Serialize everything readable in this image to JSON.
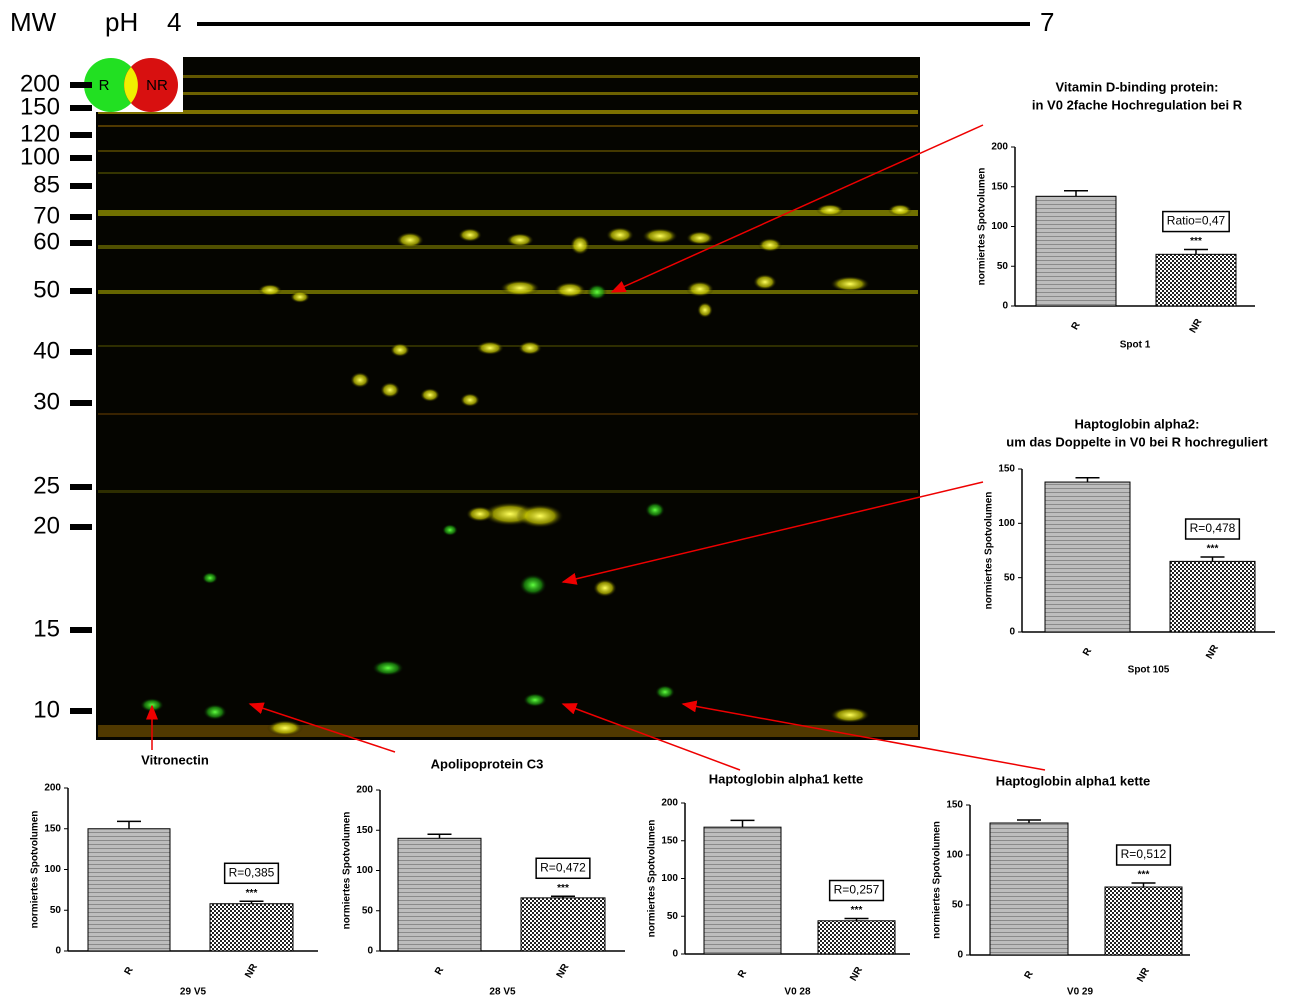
{
  "gel": {
    "mw_title": "MW",
    "ph_title": "pH",
    "ph_start": "4",
    "ph_end": "7",
    "mw_markers": [
      200,
      150,
      120,
      100,
      85,
      70,
      60,
      50,
      40,
      30,
      25,
      20,
      15,
      10
    ],
    "legend": [
      "R",
      "NR"
    ]
  },
  "chart_data": [
    {
      "type": "bar",
      "title": "Vitamin D-binding protein:",
      "subtitle": "in  V0 2fache Hochregulation bei R",
      "categories": [
        "R",
        "NR"
      ],
      "values": [
        138,
        65
      ],
      "errors": [
        7,
        6
      ],
      "ylabel": "normiertes  Spotvolumen",
      "xlabel": "Spot 1",
      "annotation": "Ratio=0,47",
      "significance": "***",
      "ylim": [
        0,
        200
      ],
      "yticks": [
        0,
        50,
        100,
        150,
        200
      ]
    },
    {
      "type": "bar",
      "title": "Haptoglobin alpha2:",
      "subtitle": "um das Doppelte in  V0 bei R hochreguliert",
      "categories": [
        "R",
        "NR"
      ],
      "values": [
        138,
        65
      ],
      "errors": [
        4,
        4
      ],
      "ylabel": "normiertes  Spotvolumen",
      "xlabel": "Spot 105",
      "annotation": "R=0,478",
      "significance": "***",
      "ylim": [
        0,
        150
      ],
      "yticks": [
        0,
        50,
        100,
        150
      ]
    },
    {
      "type": "bar",
      "title": "Vitronectin",
      "categories": [
        "R",
        "NR"
      ],
      "values": [
        150,
        58
      ],
      "errors": [
        9,
        3
      ],
      "ylabel": "normiertes  Spotvolumen",
      "xlabel": "29 V5",
      "annotation": "R=0,385",
      "significance": "***",
      "ylim": [
        0,
        200
      ],
      "yticks": [
        0,
        50,
        100,
        150,
        200
      ]
    },
    {
      "type": "bar",
      "title": "Apolipoprotein C3",
      "categories": [
        "R",
        "NR"
      ],
      "values": [
        140,
        66
      ],
      "errors": [
        5,
        2
      ],
      "ylabel": "normiertes  Spotvolumen",
      "xlabel": "28  V5",
      "annotation": "R=0,472",
      "significance": "***",
      "ylim": [
        0,
        200
      ],
      "yticks": [
        0,
        50,
        100,
        150,
        200
      ]
    },
    {
      "type": "bar",
      "title": "Haptoglobin alpha1 kette",
      "categories": [
        "R",
        "NR"
      ],
      "values": [
        168,
        44
      ],
      "errors": [
        9,
        3
      ],
      "ylabel": "normiertes  Spotvolumen",
      "xlabel": "V0 28",
      "annotation": "R=0,257",
      "significance": "***",
      "ylim": [
        0,
        200
      ],
      "yticks": [
        0,
        50,
        100,
        150,
        200
      ]
    },
    {
      "type": "bar",
      "title": "Haptoglobin alpha1 kette",
      "categories": [
        "R",
        "NR"
      ],
      "values": [
        132,
        68
      ],
      "errors": [
        3,
        4
      ],
      "ylabel": "normiertes  Spotvolumen",
      "xlabel": "V0 29",
      "annotation": "R=0,512",
      "significance": "***",
      "ylim": [
        0,
        150
      ],
      "yticks": [
        0,
        50,
        100,
        150
      ]
    }
  ]
}
